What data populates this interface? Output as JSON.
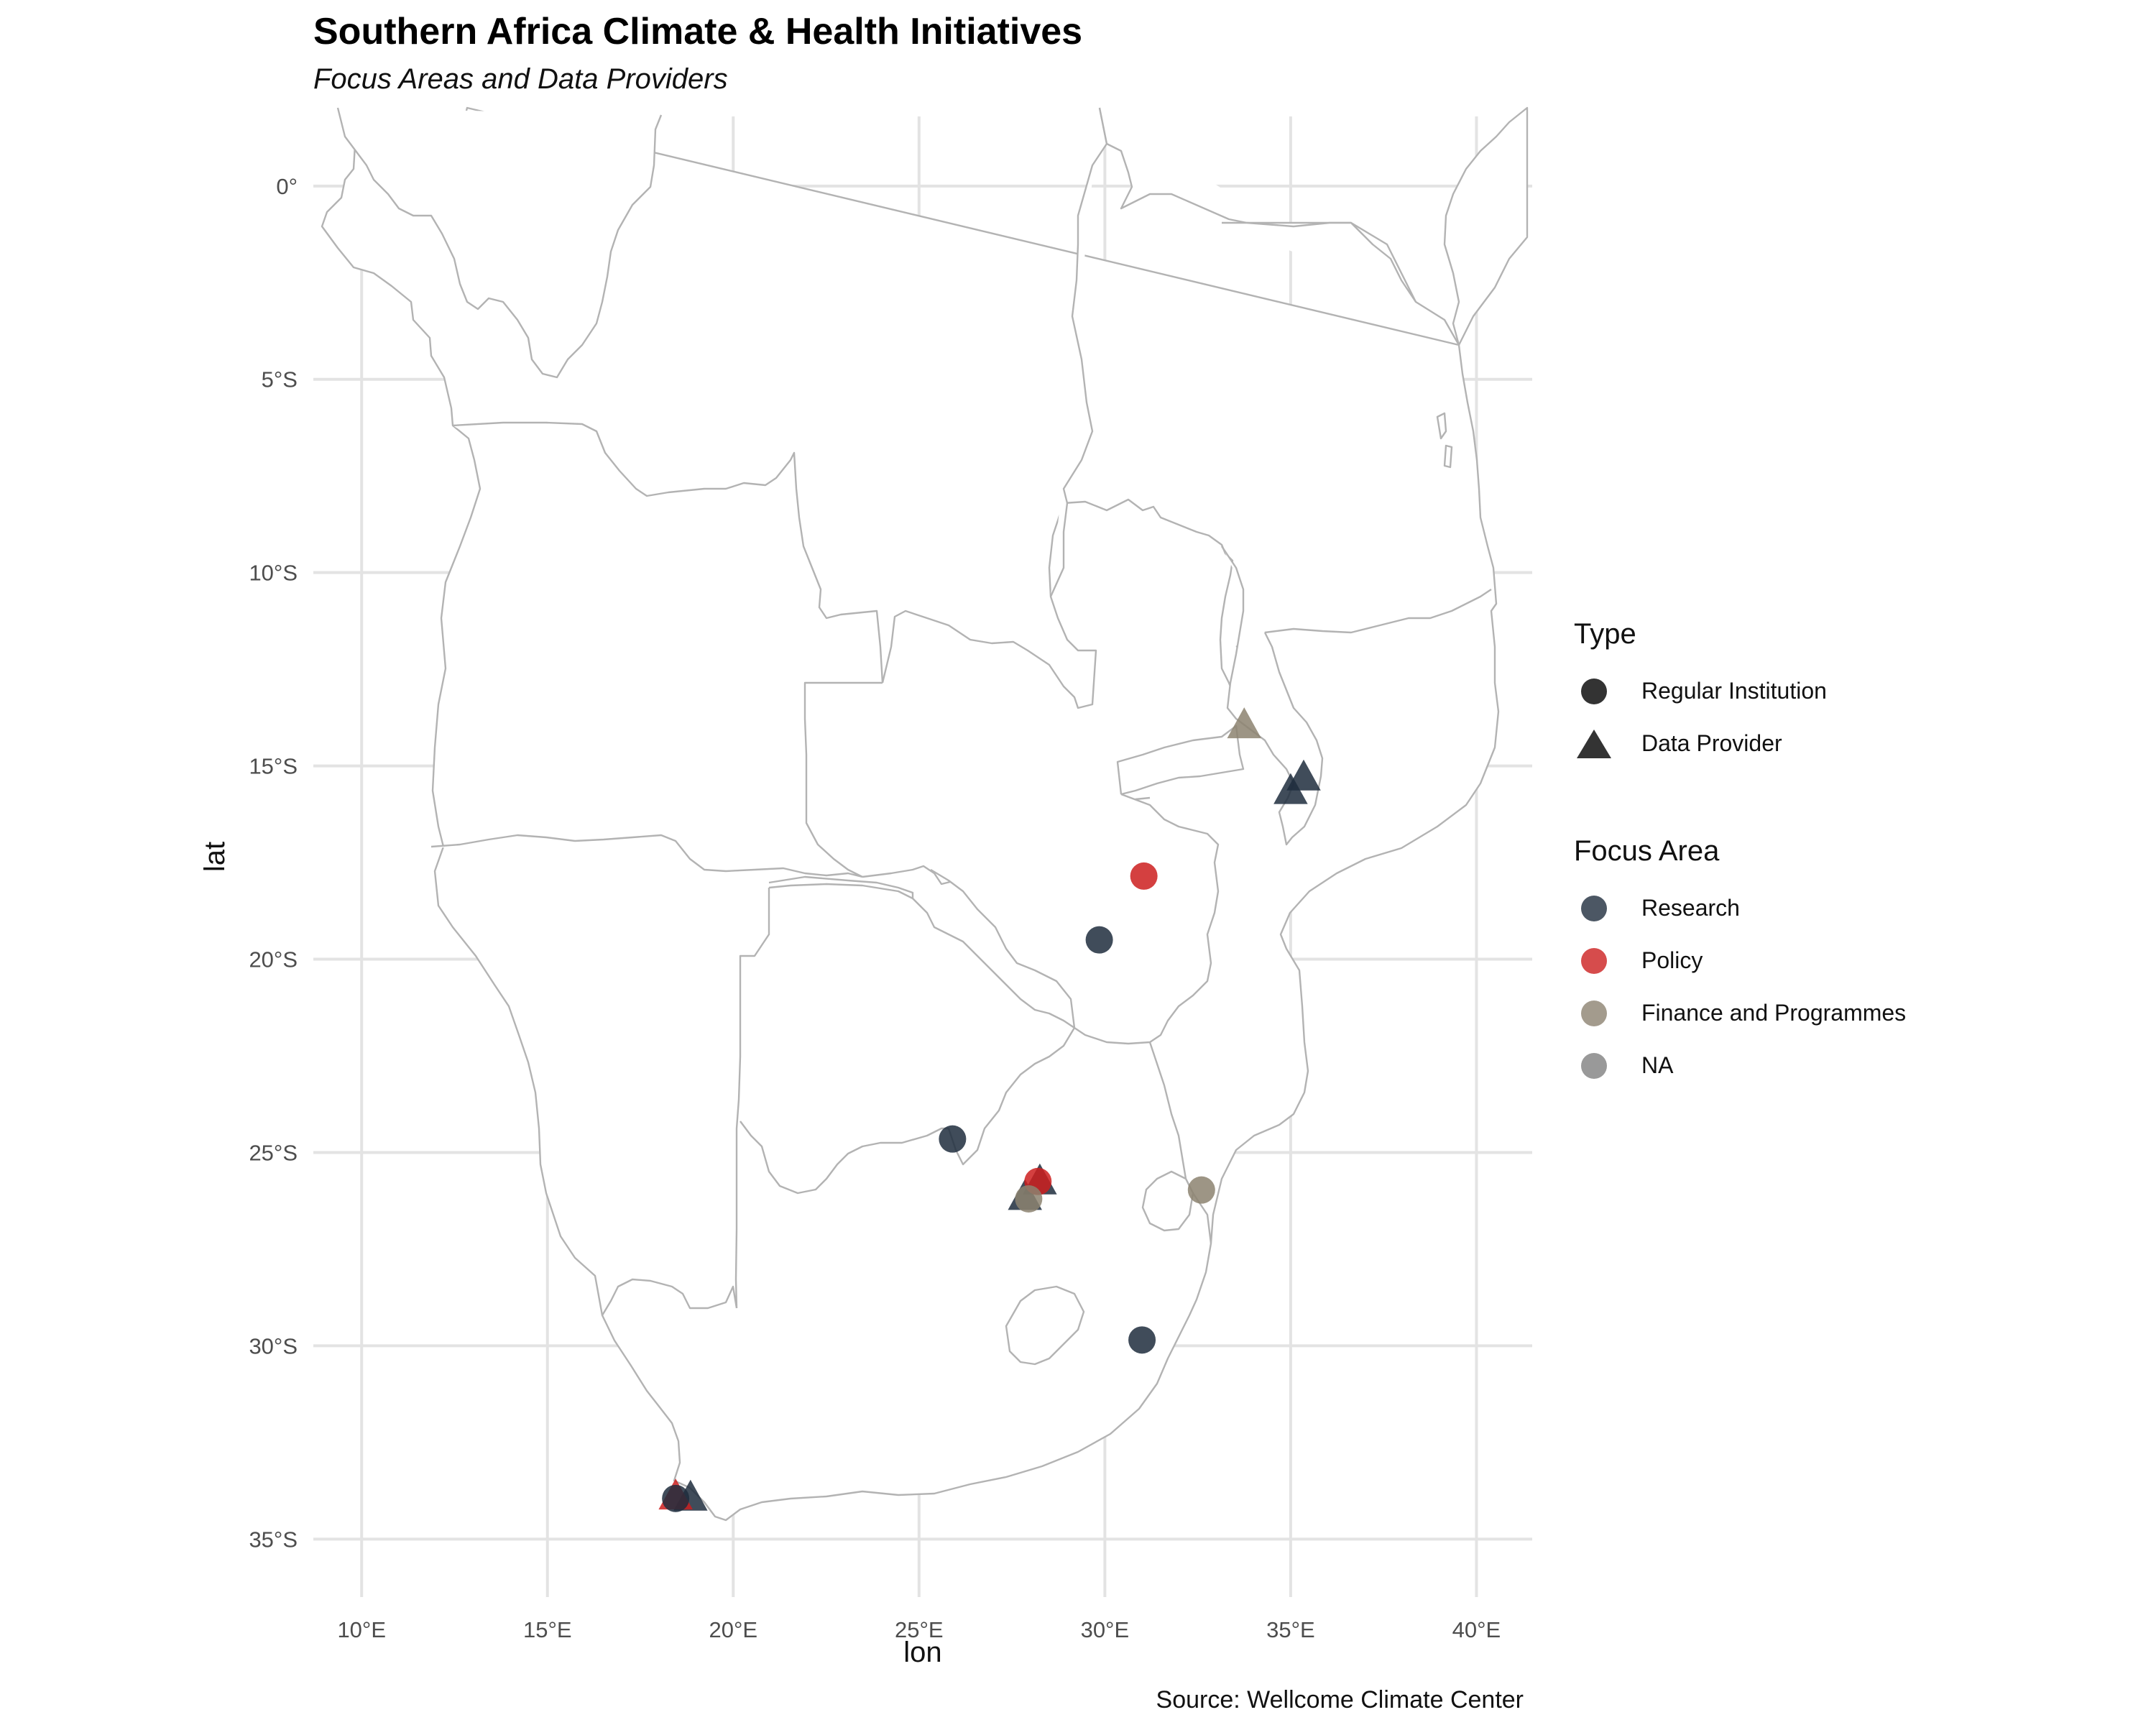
{
  "title": "Southern Africa Climate & Health Initiatives",
  "subtitle": "Focus Areas and Data Providers",
  "caption": "Source: Wellcome Climate Center",
  "legend": {
    "type": {
      "title": "Type",
      "items": [
        {
          "label": "Regular Institution",
          "shape": "circle"
        },
        {
          "label": "Data Provider",
          "shape": "triangle"
        }
      ]
    },
    "focus": {
      "title": "Focus Area",
      "items": [
        {
          "label": "Research",
          "color": "#1f2d3d"
        },
        {
          "label": "Policy",
          "color": "#cc1f1f"
        },
        {
          "label": "Finance and Programmes",
          "color": "#8c8270"
        },
        {
          "label": "NA",
          "color": "#7f7f7f"
        }
      ]
    }
  },
  "chart_data": {
    "type": "scatter",
    "xlabel": "lon",
    "ylabel": "lat",
    "xlim": [
      8.7,
      41.5
    ],
    "ylim": [
      -36.5,
      1.8
    ],
    "x_ticks": [
      10,
      15,
      20,
      25,
      30,
      35,
      40
    ],
    "x_tick_labels": [
      "10°E",
      "15°E",
      "20°E",
      "25°E",
      "30°E",
      "35°E",
      "40°E"
    ],
    "y_ticks": [
      0,
      -5,
      -10,
      -15,
      -20,
      -25,
      -30,
      -35
    ],
    "y_tick_labels": [
      "0°",
      "5°S",
      "10°S",
      "15°S",
      "20°S",
      "25°S",
      "30°S",
      "35°S"
    ],
    "grid": true,
    "legend_position": "right",
    "points": [
      {
        "lon": 33.75,
        "lat": -13.95,
        "type": "Data Provider",
        "focus": "Finance and Programmes"
      },
      {
        "lon": 35.35,
        "lat": -15.3,
        "type": "Data Provider",
        "focus": "Research"
      },
      {
        "lon": 35.0,
        "lat": -15.65,
        "type": "Data Provider",
        "focus": "Research"
      },
      {
        "lon": 31.05,
        "lat": -17.85,
        "type": "Regular Institution",
        "focus": "Policy"
      },
      {
        "lon": 29.85,
        "lat": -19.5,
        "type": "Regular Institution",
        "focus": "Research"
      },
      {
        "lon": 25.9,
        "lat": -24.65,
        "type": "Regular Institution",
        "focus": "Research"
      },
      {
        "lon": 27.85,
        "lat": -26.15,
        "type": "Data Provider",
        "focus": "Research"
      },
      {
        "lon": 28.25,
        "lat": -25.75,
        "type": "Data Provider",
        "focus": "Research"
      },
      {
        "lon": 28.2,
        "lat": -25.75,
        "type": "Regular Institution",
        "focus": "Policy"
      },
      {
        "lon": 27.95,
        "lat": -26.2,
        "type": "Regular Institution",
        "focus": "Finance and Programmes"
      },
      {
        "lon": 32.6,
        "lat": -25.97,
        "type": "Regular Institution",
        "focus": "Finance and Programmes"
      },
      {
        "lon": 31.0,
        "lat": -29.85,
        "type": "Regular Institution",
        "focus": "Research"
      },
      {
        "lon": 18.85,
        "lat": -33.93,
        "type": "Data Provider",
        "focus": "Research"
      },
      {
        "lon": 18.45,
        "lat": -33.9,
        "type": "Data Provider",
        "focus": "Policy"
      },
      {
        "lon": 18.45,
        "lat": -33.95,
        "type": "Regular Institution",
        "focus": "Research"
      }
    ]
  }
}
